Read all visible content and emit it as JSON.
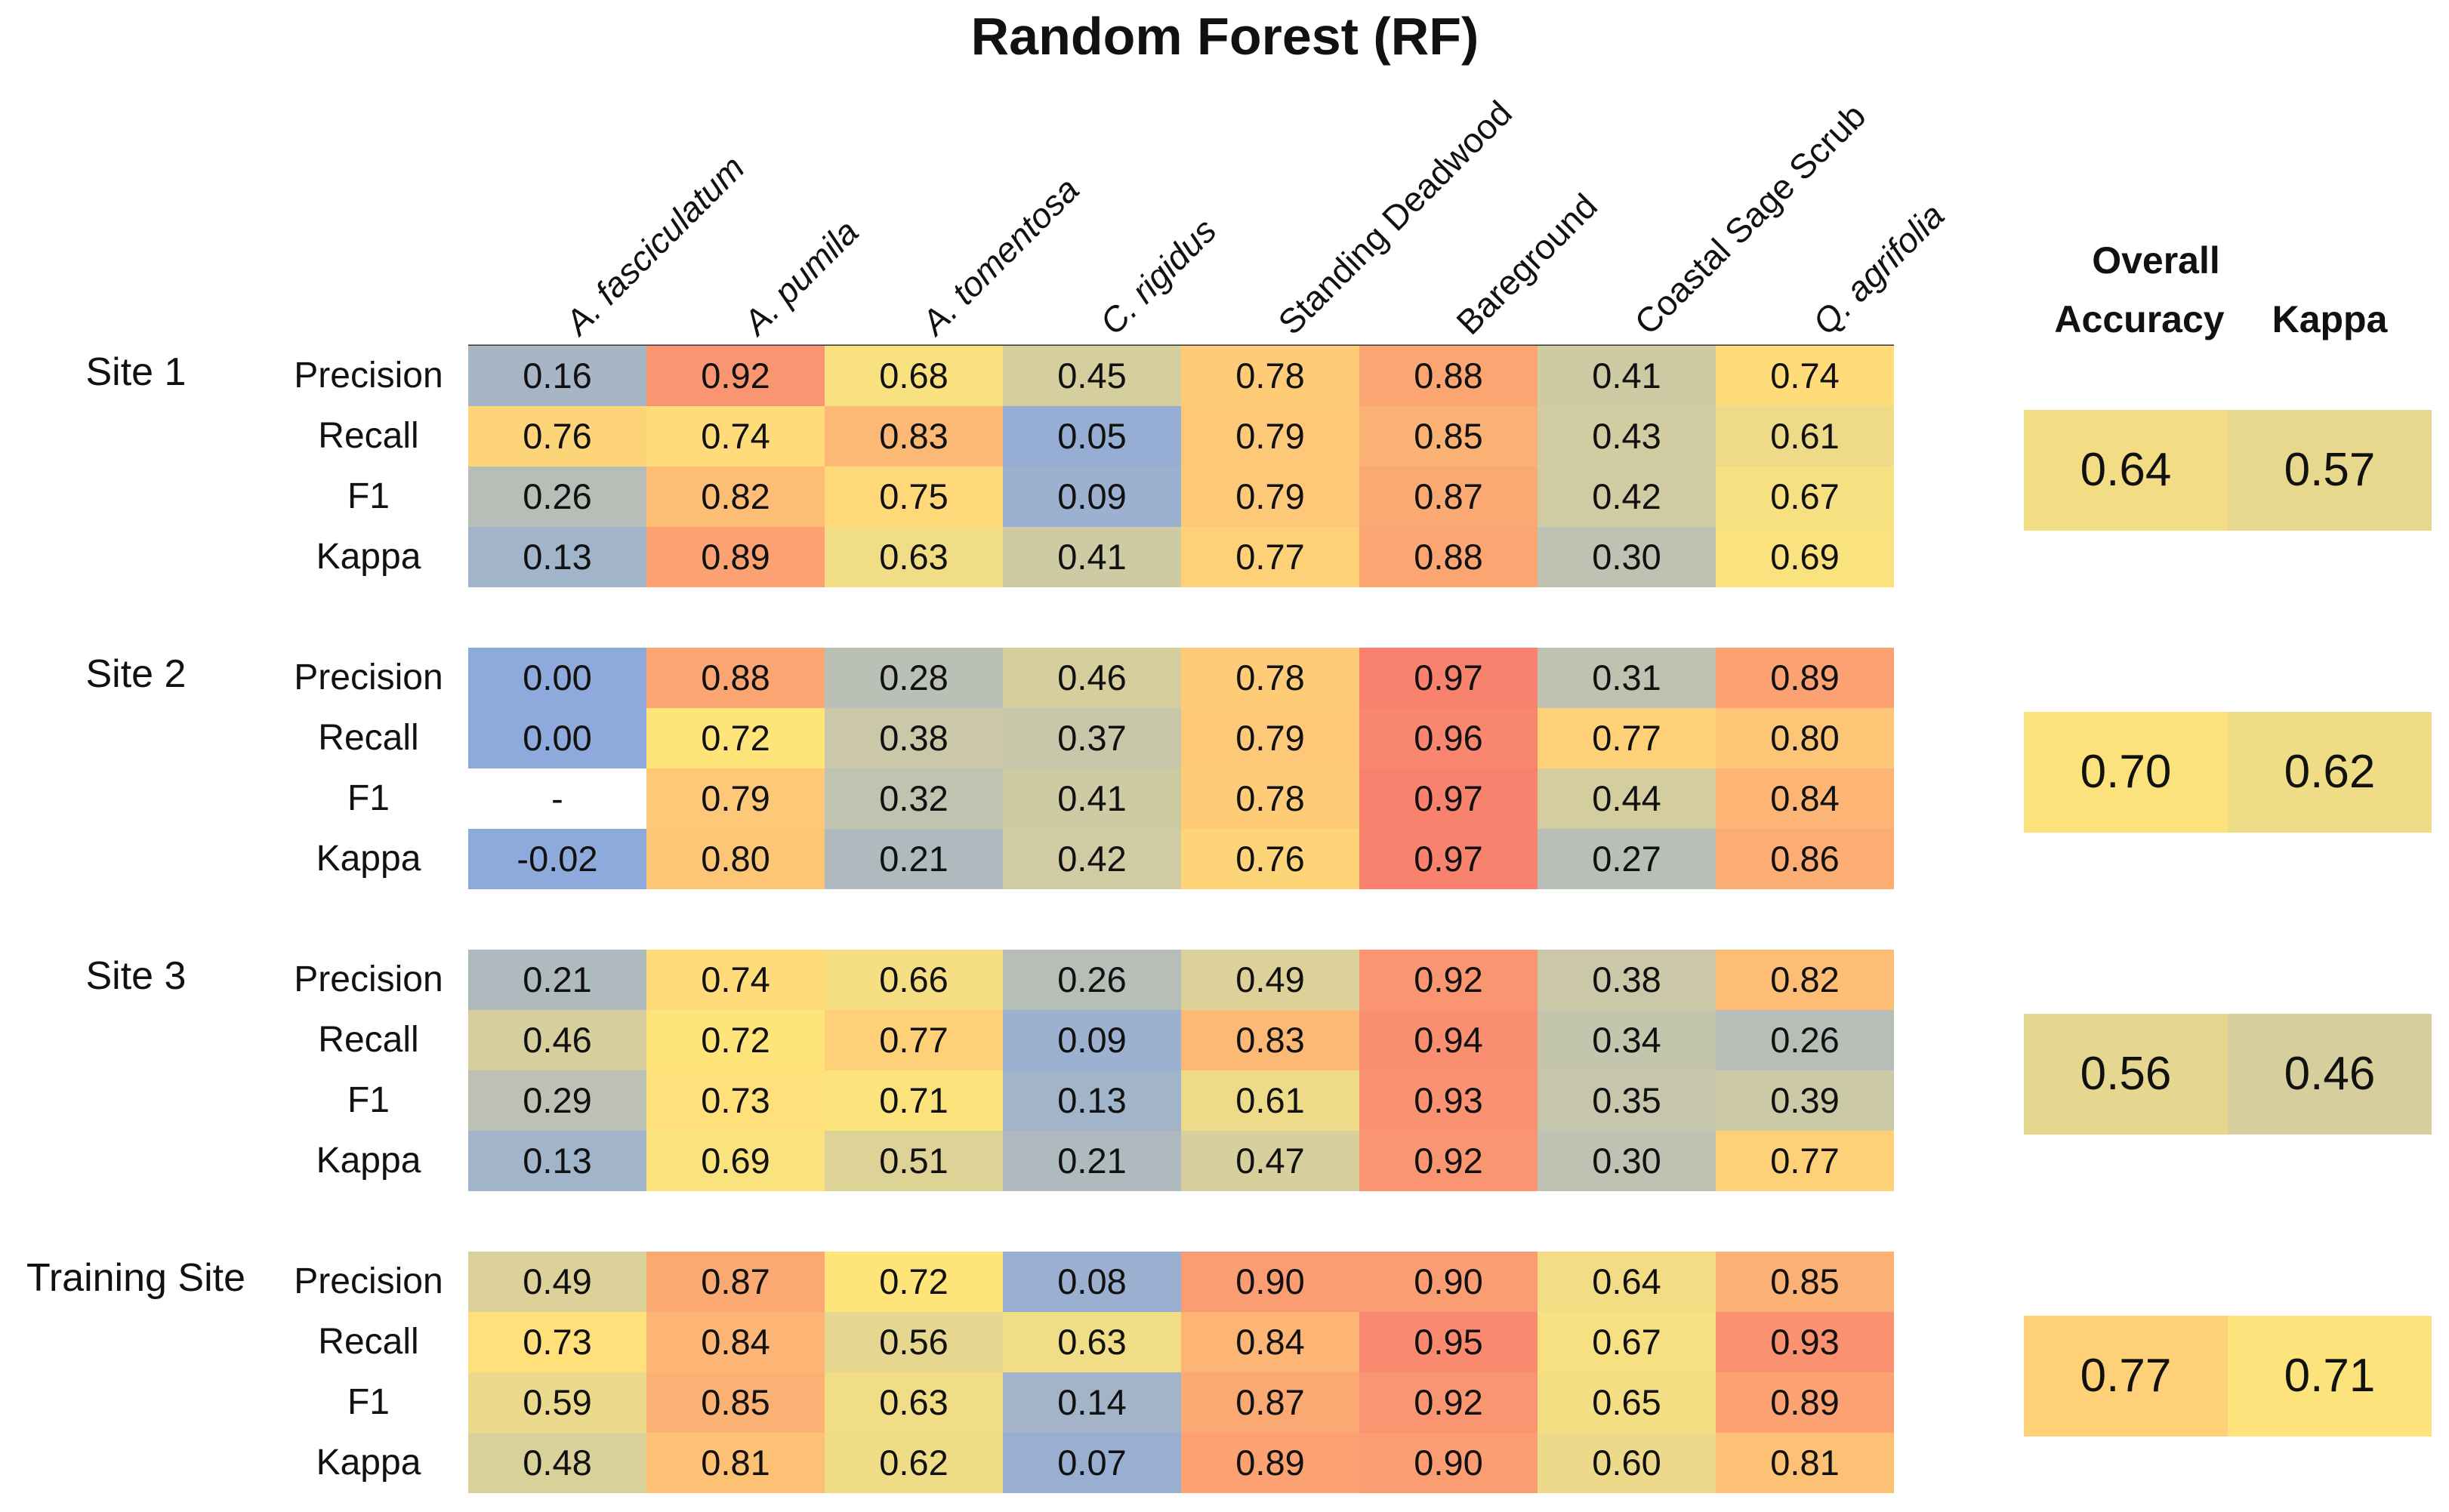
{
  "chart_data": {
    "type": "heatmap",
    "title": "Random Forest (RF)",
    "columns": [
      "A. fasciculatum",
      "A. pumila",
      "A. tomentosa",
      "C.  rigidus",
      "Standing Deadwood",
      "Bareground",
      "Coastal Sage Scrub",
      "Q. agrifolia"
    ],
    "metrics": [
      "Precision",
      "Recall",
      "F1",
      "Kappa"
    ],
    "summary_headers": {
      "overall_line1": "Overall",
      "overall_line2": "Accuracy",
      "kappa": "Kappa"
    },
    "color_scale": {
      "low": "#8ea9db",
      "mid": "#ffe47a",
      "high": "#f8766d",
      "domain": [
        0,
        0.72,
        1
      ]
    },
    "sites": [
      {
        "name": "Site 1",
        "values": [
          [
            "0.16",
            "0.92",
            "0.68",
            "0.45",
            "0.78",
            "0.88",
            "0.41",
            "0.74"
          ],
          [
            "0.76",
            "0.74",
            "0.83",
            "0.05",
            "0.79",
            "0.85",
            "0.43",
            "0.61"
          ],
          [
            "0.26",
            "0.82",
            "0.75",
            "0.09",
            "0.79",
            "0.87",
            "0.42",
            "0.67"
          ],
          [
            "0.13",
            "0.89",
            "0.63",
            "0.41",
            "0.77",
            "0.88",
            "0.30",
            "0.69"
          ]
        ],
        "overall_accuracy": "0.64",
        "kappa": "0.57"
      },
      {
        "name": "Site 2",
        "values": [
          [
            "0.00",
            "0.88",
            "0.28",
            "0.46",
            "0.78",
            "0.97",
            "0.31",
            "0.89"
          ],
          [
            "0.00",
            "0.72",
            "0.38",
            "0.37",
            "0.79",
            "0.96",
            "0.77",
            "0.80"
          ],
          [
            "-",
            "0.79",
            "0.32",
            "0.41",
            "0.78",
            "0.97",
            "0.44",
            "0.84"
          ],
          [
            "-0.02",
            "0.80",
            "0.21",
            "0.42",
            "0.76",
            "0.97",
            "0.27",
            "0.86"
          ]
        ],
        "overall_accuracy": "0.70",
        "kappa": "0.62"
      },
      {
        "name": "Site 3",
        "values": [
          [
            "0.21",
            "0.74",
            "0.66",
            "0.26",
            "0.49",
            "0.92",
            "0.38",
            "0.82"
          ],
          [
            "0.46",
            "0.72",
            "0.77",
            "0.09",
            "0.83",
            "0.94",
            "0.34",
            "0.26"
          ],
          [
            "0.29",
            "0.73",
            "0.71",
            "0.13",
            "0.61",
            "0.93",
            "0.35",
            "0.39"
          ],
          [
            "0.13",
            "0.69",
            "0.51",
            "0.21",
            "0.47",
            "0.92",
            "0.30",
            "0.77"
          ]
        ],
        "overall_accuracy": "0.56",
        "kappa": "0.46"
      },
      {
        "name": "Training Site",
        "values": [
          [
            "0.49",
            "0.87",
            "0.72",
            "0.08",
            "0.90",
            "0.90",
            "0.64",
            "0.85"
          ],
          [
            "0.73",
            "0.84",
            "0.56",
            "0.63",
            "0.84",
            "0.95",
            "0.67",
            "0.93"
          ],
          [
            "0.59",
            "0.85",
            "0.63",
            "0.14",
            "0.87",
            "0.92",
            "0.65",
            "0.89"
          ],
          [
            "0.48",
            "0.81",
            "0.62",
            "0.07",
            "0.89",
            "0.90",
            "0.60",
            "0.81"
          ]
        ],
        "overall_accuracy": "0.77",
        "kappa": "0.71"
      }
    ]
  }
}
